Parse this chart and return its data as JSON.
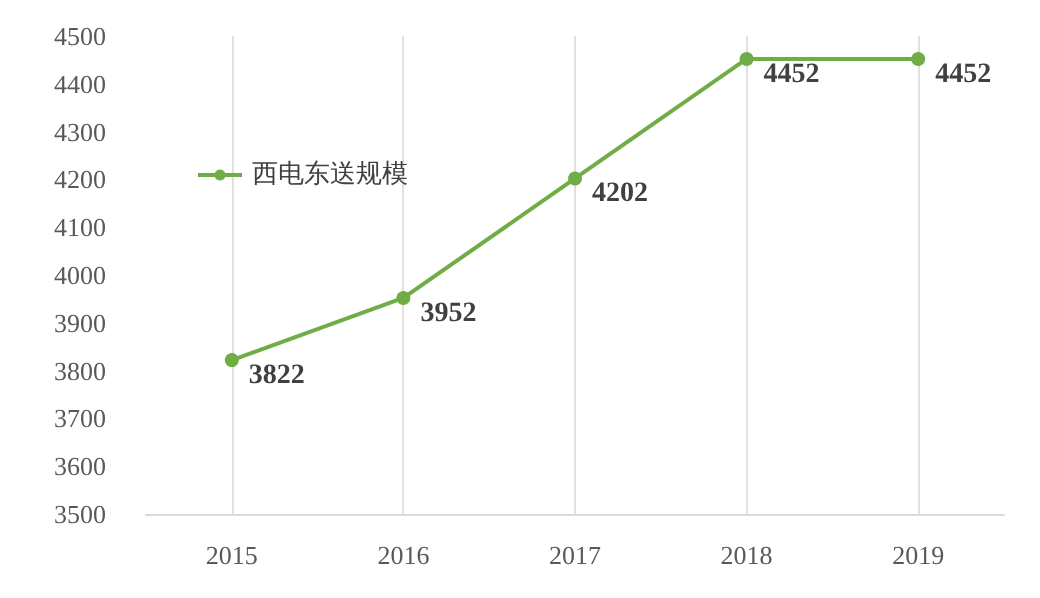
{
  "chart_data": {
    "type": "line",
    "categories": [
      "2015",
      "2016",
      "2017",
      "2018",
      "2019"
    ],
    "series": [
      {
        "name": "西电东送规模",
        "color": "#70ad47",
        "values": [
          3822,
          3952,
          4202,
          4452,
          4452
        ]
      }
    ],
    "ylim": [
      3500,
      4500
    ],
    "yticks": [
      3500,
      3600,
      3700,
      3800,
      3900,
      4000,
      4100,
      4200,
      4300,
      4400,
      4500
    ],
    "grid": "x",
    "legend": "top left",
    "marker": "circle",
    "data_labels": true
  }
}
